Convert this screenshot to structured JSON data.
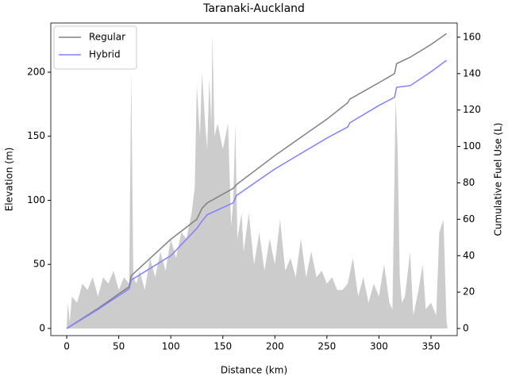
{
  "chart_data": {
    "type": "line",
    "title": "Taranaki-Auckland",
    "xlabel": "Distance (km)",
    "ylabel": "Elevation (m)",
    "y2label": "Cumulative Fuel Use (L)",
    "xlim": [
      -15.3,
      375.2
    ],
    "ylim": [
      -5.6,
      238.4
    ],
    "y2lim": [
      -3.9,
      167.8
    ],
    "xticks": [
      0,
      50,
      100,
      150,
      200,
      250,
      300,
      350
    ],
    "yticks": [
      0,
      50,
      100,
      150,
      200
    ],
    "y2ticks": [
      0,
      20,
      40,
      60,
      80,
      100,
      120,
      140,
      160
    ],
    "grid": false,
    "legend": "upper left",
    "area": {
      "color": "#cccccc",
      "x": [
        0,
        1,
        3,
        5,
        10,
        15,
        20,
        25,
        30,
        35,
        40,
        45,
        50,
        55,
        60,
        62,
        64,
        67,
        70,
        75,
        80,
        85,
        90,
        95,
        100,
        105,
        110,
        115,
        120,
        123,
        125,
        128,
        130,
        133,
        135,
        137,
        139,
        140,
        142,
        145,
        150,
        155,
        158,
        160,
        162,
        164,
        168,
        170,
        175,
        180,
        185,
        190,
        195,
        200,
        205,
        210,
        215,
        220,
        225,
        230,
        235,
        240,
        245,
        250,
        255,
        260,
        265,
        270,
        275,
        280,
        285,
        290,
        295,
        300,
        305,
        310,
        313,
        316,
        318,
        320,
        322,
        325,
        330,
        333,
        338,
        342,
        345,
        350,
        355,
        358,
        362,
        365,
        366
      ],
      "values": [
        0,
        20,
        5,
        25,
        20,
        35,
        30,
        40,
        25,
        40,
        35,
        45,
        30,
        40,
        35,
        200,
        40,
        35,
        45,
        30,
        55,
        40,
        60,
        45,
        70,
        55,
        75,
        70,
        90,
        110,
        190,
        150,
        200,
        160,
        140,
        195,
        160,
        230,
        150,
        160,
        140,
        160,
        80,
        100,
        160,
        70,
        90,
        60,
        90,
        50,
        75,
        45,
        70,
        50,
        85,
        45,
        55,
        40,
        70,
        40,
        60,
        40,
        45,
        35,
        40,
        30,
        30,
        35,
        55,
        25,
        40,
        20,
        35,
        25,
        50,
        20,
        15,
        180,
        140,
        40,
        20,
        25,
        60,
        10,
        30,
        50,
        15,
        20,
        10,
        75,
        85,
        5,
        0
      ]
    },
    "x": [
      0,
      30,
      60,
      62,
      100,
      125,
      130,
      135,
      160,
      163,
      200,
      250,
      270,
      272,
      300,
      315,
      317,
      330,
      350,
      365
    ],
    "series": [
      {
        "name": "Regular",
        "color": "#808080",
        "axis": "y2",
        "values": [
          0,
          11,
          23,
          29,
          49,
          60,
          66,
          69,
          77,
          79,
          95,
          115,
          124,
          126,
          135,
          140,
          145.5,
          149,
          156,
          162
        ]
      },
      {
        "name": "Hybrid",
        "color": "#8080ff",
        "axis": "y2",
        "values": [
          0,
          10.5,
          21.8,
          26.6,
          40,
          55,
          59,
          62.5,
          69,
          73,
          87.6,
          104.6,
          110.7,
          113,
          122.5,
          127,
          132.5,
          133.4,
          141,
          147.3
        ]
      }
    ]
  }
}
